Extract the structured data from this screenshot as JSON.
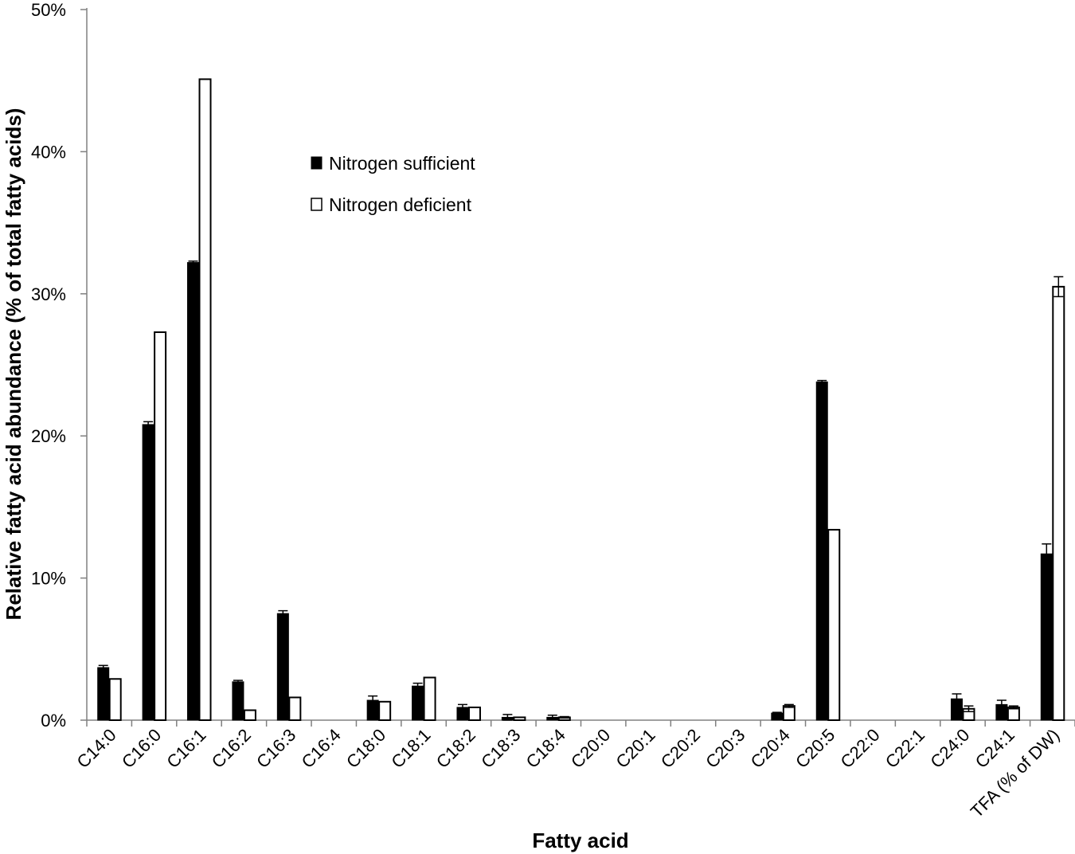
{
  "chart_data": {
    "type": "bar",
    "xlabel": "Fatty acid",
    "ylabel": "Relative fatty acid abundance (% of total fatty acids)",
    "ylim": [
      0,
      50
    ],
    "y_ticks": [
      0,
      10,
      20,
      30,
      40,
      50
    ],
    "y_tick_labels": [
      "0%",
      "10%",
      "20%",
      "30%",
      "40%",
      "50%"
    ],
    "grid": false,
    "legend_position": "upper-middle",
    "categories": [
      "C14:0",
      "C16:0",
      "C16:1",
      "C16:2",
      "C16:3",
      "C16:4",
      "C18:0",
      "C18:1",
      "C18:2",
      "C18:3",
      "C18:4",
      "C20:0",
      "C20:1",
      "C20:2",
      "C20:3",
      "C20:4",
      "C20:5",
      "C22:0",
      "C22:1",
      "C24:0",
      "C24:1",
      "TFA (% of DW)"
    ],
    "series": [
      {
        "name": "Nitrogen sufficient",
        "color": "#000000",
        "fill": "solid",
        "values": [
          3.7,
          20.8,
          32.2,
          2.7,
          7.5,
          0,
          1.4,
          2.4,
          0.9,
          0.2,
          0.2,
          0,
          0,
          0,
          0,
          0.5,
          23.8,
          0,
          0,
          1.5,
          1.1,
          11.7
        ],
        "errors": [
          0.15,
          0.2,
          0.1,
          0.1,
          0.2,
          0,
          0.3,
          0.2,
          0.2,
          0.2,
          0.15,
          0,
          0,
          0,
          0,
          0.05,
          0.1,
          0,
          0,
          0.35,
          0.3,
          0.7
        ]
      },
      {
        "name": "Nitrogen deficient",
        "color": "#ffffff",
        "fill": "outline",
        "values": [
          2.9,
          27.3,
          45.1,
          0.7,
          1.6,
          0,
          1.3,
          3.0,
          0.9,
          0.2,
          0.2,
          0,
          0,
          0,
          0,
          1.0,
          13.4,
          0,
          0,
          0.8,
          0.9,
          30.5
        ],
        "errors": [
          0,
          0,
          0,
          0,
          0,
          0,
          0,
          0,
          0,
          0,
          0.05,
          0,
          0,
          0,
          0,
          0.1,
          0,
          0,
          0,
          0.2,
          0.1,
          0.7
        ]
      }
    ]
  }
}
